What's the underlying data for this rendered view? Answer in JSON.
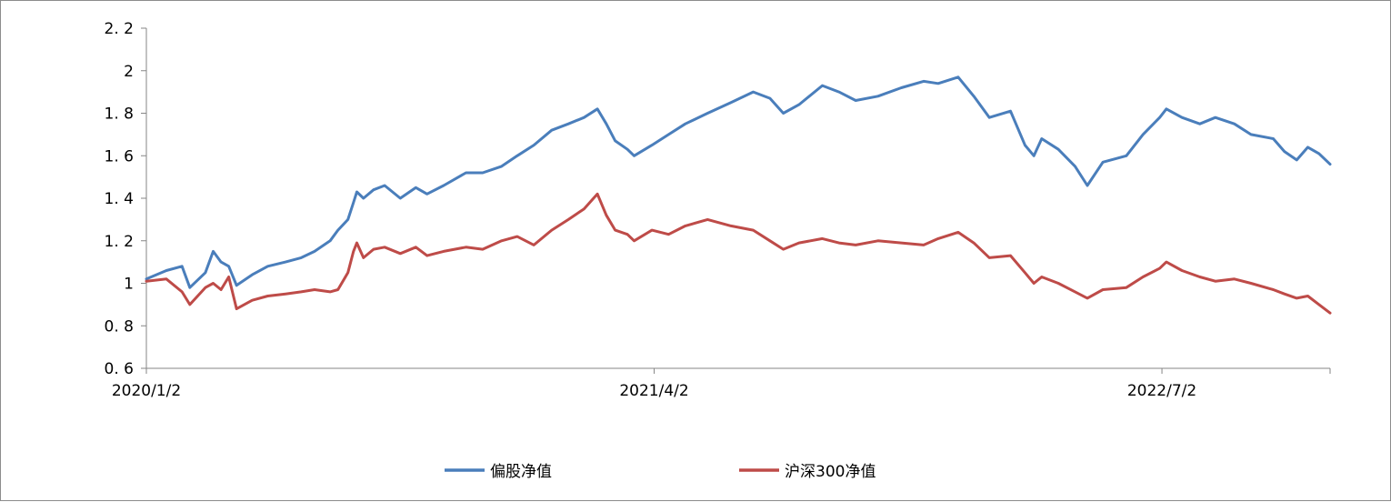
{
  "chart_data": {
    "type": "line",
    "ylim": [
      0.6,
      2.2
    ],
    "y_ticks": [
      "0. 6",
      "0. 8",
      "1",
      "1. 2",
      "1. 4",
      "1. 6",
      "1. 8",
      "2",
      "2. 2"
    ],
    "y_tick_values": [
      0.6,
      0.8,
      1.0,
      1.2,
      1.4,
      1.6,
      1.8,
      2.0,
      2.2
    ],
    "x_range": [
      "2020/1/2",
      "2022/11/30"
    ],
    "x_ticks": [
      "2020/1/2",
      "2021/4/2",
      "2022/7/2"
    ],
    "grid": false,
    "legend_position": "bottom",
    "series": [
      {
        "name": "偏股净值",
        "color": "#4a7ebb",
        "x": [
          "2020/1/2",
          "2020/1/20",
          "2020/2/3",
          "2020/2/10",
          "2020/2/24",
          "2020/3/2",
          "2020/3/9",
          "2020/3/16",
          "2020/3/23",
          "2020/4/6",
          "2020/4/20",
          "2020/5/6",
          "2020/5/20",
          "2020/6/1",
          "2020/6/15",
          "2020/6/22",
          "2020/7/1",
          "2020/7/6",
          "2020/7/9",
          "2020/7/15",
          "2020/7/24",
          "2020/8/3",
          "2020/8/17",
          "2020/8/31",
          "2020/9/10",
          "2020/9/25",
          "2020/10/15",
          "2020/10/30",
          "2020/11/16",
          "2020/11/30",
          "2020/12/15",
          "2020/12/31",
          "2021/1/15",
          "2021/1/29",
          "2021/2/10",
          "2021/2/18",
          "2021/2/26",
          "2021/3/9",
          "2021/3/15",
          "2021/3/31",
          "2021/4/15",
          "2021/4/30",
          "2021/5/20",
          "2021/6/10",
          "2021/6/30",
          "2021/7/15",
          "2021/7/27",
          "2021/8/10",
          "2021/8/31",
          "2021/9/15",
          "2021/9/30",
          "2021/10/20",
          "2021/11/10",
          "2021/11/30",
          "2021/12/13",
          "2021/12/31",
          "2022/1/14",
          "2022/1/28",
          "2022/2/16",
          "2022/3/1",
          "2022/3/9",
          "2022/3/16",
          "2022/3/31",
          "2022/4/15",
          "2022/4/26",
          "2022/5/10",
          "2022/5/31",
          "2022/6/15",
          "2022/6/30",
          "2022/7/6",
          "2022/7/20",
          "2022/8/5",
          "2022/8/19",
          "2022/9/5",
          "2022/9/20",
          "2022/10/10",
          "2022/10/20",
          "2022/10/31",
          "2022/11/10",
          "2022/11/20",
          "2022/11/30"
        ],
        "values": [
          1.02,
          1.06,
          1.08,
          0.98,
          1.05,
          1.15,
          1.1,
          1.08,
          0.99,
          1.04,
          1.08,
          1.1,
          1.12,
          1.15,
          1.2,
          1.25,
          1.3,
          1.38,
          1.43,
          1.4,
          1.44,
          1.46,
          1.4,
          1.45,
          1.42,
          1.46,
          1.52,
          1.52,
          1.55,
          1.6,
          1.65,
          1.72,
          1.75,
          1.78,
          1.82,
          1.75,
          1.67,
          1.63,
          1.6,
          1.65,
          1.7,
          1.75,
          1.8,
          1.85,
          1.9,
          1.87,
          1.8,
          1.84,
          1.93,
          1.9,
          1.86,
          1.88,
          1.92,
          1.95,
          1.94,
          1.97,
          1.88,
          1.78,
          1.81,
          1.65,
          1.6,
          1.68,
          1.63,
          1.55,
          1.46,
          1.57,
          1.6,
          1.7,
          1.78,
          1.82,
          1.78,
          1.75,
          1.78,
          1.75,
          1.7,
          1.68,
          1.62,
          1.58,
          1.64,
          1.61,
          1.56
        ]
      },
      {
        "name": "沪深300净值",
        "color": "#be4b48",
        "x": [
          "2020/1/2",
          "2020/1/20",
          "2020/2/3",
          "2020/2/10",
          "2020/2/24",
          "2020/3/2",
          "2020/3/9",
          "2020/3/16",
          "2020/3/23",
          "2020/4/6",
          "2020/4/20",
          "2020/5/6",
          "2020/5/20",
          "2020/6/1",
          "2020/6/15",
          "2020/6/22",
          "2020/7/1",
          "2020/7/6",
          "2020/7/9",
          "2020/7/15",
          "2020/7/24",
          "2020/8/3",
          "2020/8/17",
          "2020/8/31",
          "2020/9/10",
          "2020/9/25",
          "2020/10/15",
          "2020/10/30",
          "2020/11/16",
          "2020/11/30",
          "2020/12/15",
          "2020/12/31",
          "2021/1/15",
          "2021/1/29",
          "2021/2/10",
          "2021/2/18",
          "2021/2/26",
          "2021/3/9",
          "2021/3/15",
          "2021/3/31",
          "2021/4/15",
          "2021/4/30",
          "2021/5/20",
          "2021/6/10",
          "2021/6/30",
          "2021/7/15",
          "2021/7/27",
          "2021/8/10",
          "2021/8/31",
          "2021/9/15",
          "2021/9/30",
          "2021/10/20",
          "2021/11/10",
          "2021/11/30",
          "2021/12/13",
          "2021/12/31",
          "2022/1/14",
          "2022/1/28",
          "2022/2/16",
          "2022/3/1",
          "2022/3/9",
          "2022/3/16",
          "2022/3/31",
          "2022/4/15",
          "2022/4/26",
          "2022/5/10",
          "2022/5/31",
          "2022/6/15",
          "2022/6/30",
          "2022/7/6",
          "2022/7/20",
          "2022/8/5",
          "2022/8/19",
          "2022/9/5",
          "2022/9/20",
          "2022/10/10",
          "2022/10/20",
          "2022/10/31",
          "2022/11/10",
          "2022/11/20",
          "2022/11/30"
        ],
        "values": [
          1.01,
          1.02,
          0.96,
          0.9,
          0.98,
          1.0,
          0.97,
          1.03,
          0.88,
          0.92,
          0.94,
          0.95,
          0.96,
          0.97,
          0.96,
          0.97,
          1.05,
          1.15,
          1.19,
          1.12,
          1.16,
          1.17,
          1.14,
          1.17,
          1.13,
          1.15,
          1.17,
          1.16,
          1.2,
          1.22,
          1.18,
          1.25,
          1.3,
          1.35,
          1.42,
          1.32,
          1.25,
          1.23,
          1.2,
          1.25,
          1.23,
          1.27,
          1.3,
          1.27,
          1.25,
          1.2,
          1.16,
          1.19,
          1.21,
          1.19,
          1.18,
          1.2,
          1.19,
          1.18,
          1.21,
          1.24,
          1.19,
          1.12,
          1.13,
          1.05,
          1.0,
          1.03,
          1.0,
          0.96,
          0.93,
          0.97,
          0.98,
          1.03,
          1.07,
          1.1,
          1.06,
          1.03,
          1.01,
          1.02,
          1.0,
          0.97,
          0.95,
          0.93,
          0.94,
          0.9,
          0.86
        ]
      }
    ]
  }
}
